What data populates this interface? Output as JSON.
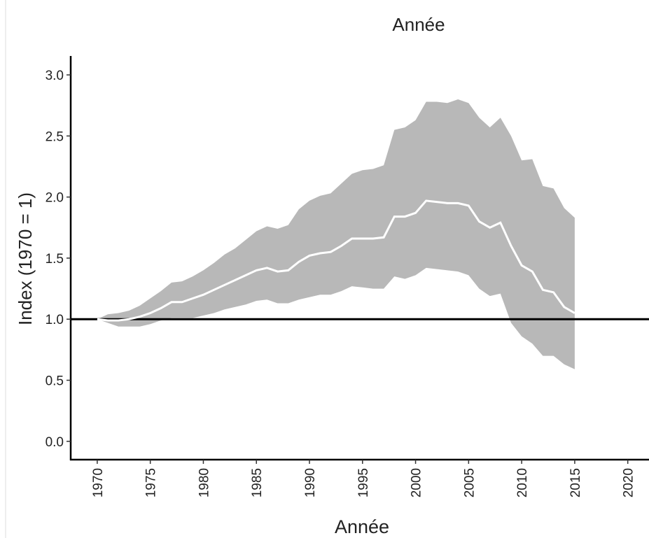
{
  "chart_data": {
    "type": "line",
    "title": "Année",
    "xlabel": "Année",
    "ylabel": "Index (1970 = 1)",
    "x": [
      1970,
      1971,
      1972,
      1973,
      1974,
      1975,
      1976,
      1977,
      1978,
      1979,
      1980,
      1981,
      1982,
      1983,
      1984,
      1985,
      1986,
      1987,
      1988,
      1989,
      1990,
      1991,
      1992,
      1993,
      1994,
      1995,
      1996,
      1997,
      1998,
      1999,
      2000,
      2001,
      2002,
      2003,
      2004,
      2005,
      2006,
      2007,
      2008,
      2009,
      2010,
      2011,
      2012,
      2013,
      2014,
      2015
    ],
    "values": [
      1.0,
      0.99,
      0.99,
      1.0,
      1.02,
      1.05,
      1.09,
      1.14,
      1.14,
      1.17,
      1.2,
      1.24,
      1.28,
      1.32,
      1.36,
      1.4,
      1.42,
      1.39,
      1.4,
      1.47,
      1.52,
      1.54,
      1.55,
      1.6,
      1.66,
      1.66,
      1.66,
      1.67,
      1.84,
      1.84,
      1.87,
      1.97,
      1.96,
      1.95,
      1.95,
      1.93,
      1.8,
      1.75,
      1.79,
      1.6,
      1.44,
      1.39,
      1.24,
      1.22,
      1.1,
      1.05
    ],
    "upper": [
      1.0,
      1.04,
      1.05,
      1.07,
      1.11,
      1.17,
      1.23,
      1.3,
      1.31,
      1.35,
      1.4,
      1.46,
      1.53,
      1.58,
      1.65,
      1.72,
      1.76,
      1.74,
      1.77,
      1.9,
      1.97,
      2.01,
      2.03,
      2.11,
      2.19,
      2.22,
      2.23,
      2.26,
      2.55,
      2.57,
      2.63,
      2.78,
      2.78,
      2.77,
      2.8,
      2.77,
      2.65,
      2.57,
      2.65,
      2.5,
      2.3,
      2.31,
      2.09,
      2.07,
      1.91,
      1.83
    ],
    "lower": [
      1.0,
      0.97,
      0.94,
      0.94,
      0.94,
      0.96,
      0.99,
      1.01,
      1.01,
      1.01,
      1.03,
      1.05,
      1.08,
      1.1,
      1.12,
      1.15,
      1.16,
      1.13,
      1.13,
      1.16,
      1.18,
      1.2,
      1.2,
      1.23,
      1.27,
      1.26,
      1.25,
      1.25,
      1.35,
      1.33,
      1.36,
      1.42,
      1.41,
      1.4,
      1.39,
      1.36,
      1.25,
      1.19,
      1.21,
      0.97,
      0.86,
      0.8,
      0.7,
      0.7,
      0.63,
      0.59
    ],
    "color": "#ffffff",
    "band_color": "#b8b8b8",
    "reference_line": 1,
    "xlim": [
      1967.5,
      2022
    ],
    "ylim": [
      -0.15,
      3.155
    ],
    "xticks": [
      1970,
      1975,
      1980,
      1985,
      1990,
      1995,
      2000,
      2005,
      2010,
      2015,
      2020
    ],
    "yticks": [
      {
        "value": 0,
        "label": "0.0"
      },
      {
        "value": 0.5,
        "label": "0.5"
      },
      {
        "value": 1,
        "label": "1.0"
      },
      {
        "value": 1.5,
        "label": "1.5"
      },
      {
        "value": 2,
        "label": "2.0"
      },
      {
        "value": 2.5,
        "label": "2.5"
      },
      {
        "value": 3,
        "label": "3.0"
      }
    ]
  }
}
